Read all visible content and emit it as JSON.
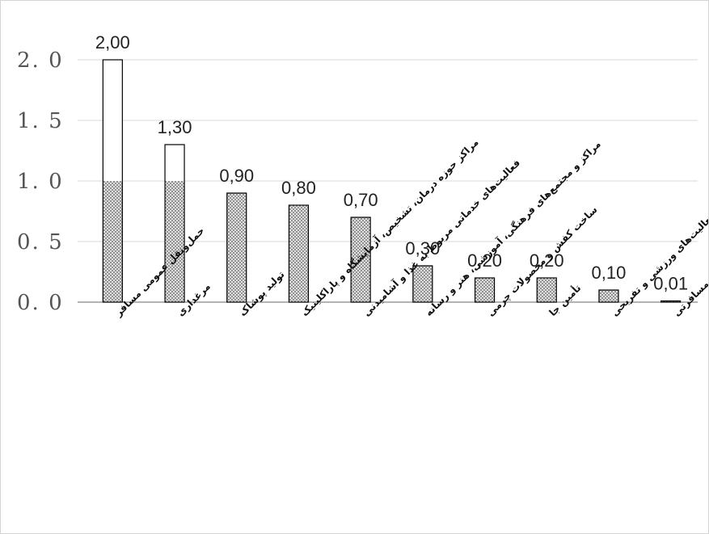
{
  "chart_data": {
    "type": "bar",
    "categories": [
      "حمل‌ونقل عمومی مسافر",
      "مرغداری",
      "تولید پوشاک",
      "مراکز حوزه درمان، تشخیص، آزمایشگاه و پاراکلینیک",
      "فعالیت‌های خدماتی مربوط به غذا و آشامیدنی",
      "مراکز و مجتمع‌های فرهنگی، آموزشی، هنر و رسانه",
      "ساخت کفش و محصولات چرمی",
      "تأمین جا",
      "فعالیت‌های ورزشی و تفریحی",
      "خدمات تور و آژانس‌های مسافرتی"
    ],
    "values": [
      2.0,
      1.3,
      0.9,
      0.8,
      0.7,
      0.3,
      0.2,
      0.2,
      0.1,
      0.01
    ],
    "data_labels": [
      "2,00",
      "1,30",
      "0,90",
      "0,80",
      "0,70",
      "0,30",
      "0,20",
      "0,20",
      "0,10",
      "0,01"
    ],
    "yticks": [
      "0. 0",
      "0. 5",
      "1. 0",
      "1. 5",
      "2. 0"
    ],
    "ytick_values": [
      0,
      0.5,
      1.0,
      1.5,
      2.0
    ],
    "ylim": [
      0,
      2.0
    ],
    "title": "",
    "xlabel": "",
    "ylabel": "",
    "grid": true,
    "fill_cap": 1.0,
    "colors": {
      "bar_edge": "#000000",
      "bar_fill_pattern": "#8a8a8a",
      "grid": "#d9d9d9",
      "axis": "#888888"
    }
  }
}
